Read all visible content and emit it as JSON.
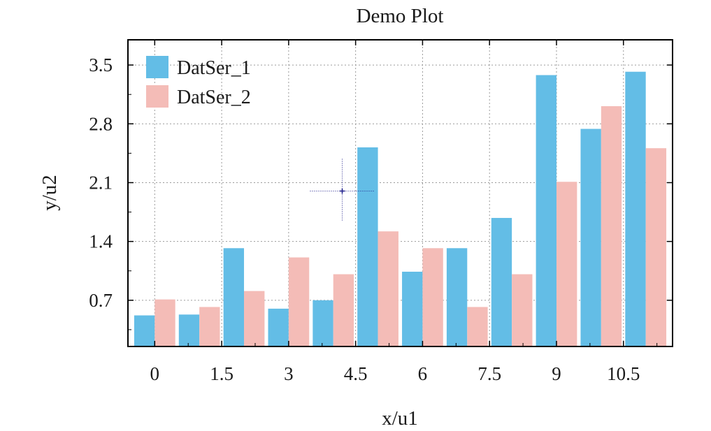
{
  "chart_data": {
    "type": "bar",
    "title": "Demo Plot",
    "xlabel": "x/u1",
    "ylabel": "y/u2",
    "x": [
      0,
      1,
      2,
      3,
      4,
      5,
      6,
      7,
      8,
      9,
      10,
      11
    ],
    "xticks": [
      0,
      1.5,
      3,
      4.5,
      6,
      7.5,
      9,
      10.5
    ],
    "xtick_labels": [
      "0",
      "1.5",
      "3",
      "4.5",
      "6",
      "7.5",
      "9",
      "10.5"
    ],
    "yticks": [
      0.7,
      1.4,
      2.1,
      2.8,
      3.5
    ],
    "ytick_labels": [
      "0.7",
      "1.4",
      "2.1",
      "2.8",
      "3.5"
    ],
    "xlim": [
      -0.6,
      11.6
    ],
    "ylim": [
      0.15,
      3.8
    ],
    "grid": true,
    "legend_position": "top-left",
    "series": [
      {
        "name": "DatSer_1",
        "color": "#63bde6",
        "values": [
          0.52,
          0.53,
          1.32,
          0.6,
          0.7,
          2.52,
          1.04,
          1.32,
          1.68,
          3.38,
          2.74,
          3.42
        ]
      },
      {
        "name": "DatSer_2",
        "color": "#f4bcb7",
        "values": [
          0.71,
          0.62,
          0.81,
          1.21,
          1.01,
          1.52,
          1.32,
          0.62,
          1.01,
          2.11,
          3.01,
          2.51
        ]
      }
    ],
    "annotations": [
      {
        "type": "crosshair-marker",
        "x": 4.2,
        "y": 2.0,
        "color": "#1b1b8a"
      }
    ]
  }
}
